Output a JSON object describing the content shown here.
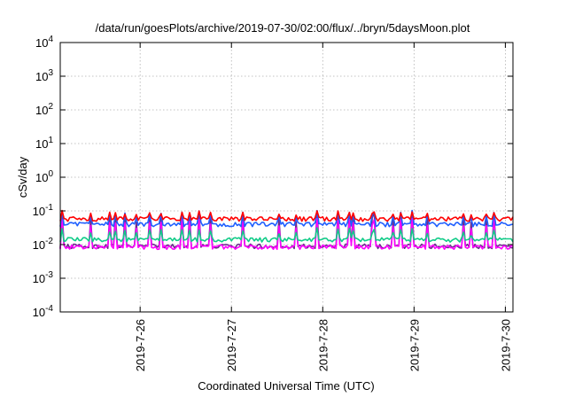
{
  "chart_data": {
    "type": "line",
    "title": "/data/run/goesPlots/archive/2019-07-30/02:00/flux/../bryn/5daysMoon.plot",
    "xlabel": "Coordinated Universal Time (UTC)",
    "ylabel": "cSv/day",
    "yscale": "log",
    "ylim": [
      0.0001,
      10000
    ],
    "yticks": [
      {
        "base": "10",
        "exp": "-4"
      },
      {
        "base": "10",
        "exp": "-3"
      },
      {
        "base": "10",
        "exp": "-2"
      },
      {
        "base": "10",
        "exp": "-1"
      },
      {
        "base": "10",
        "exp": "0"
      },
      {
        "base": "10",
        "exp": "1"
      },
      {
        "base": "10",
        "exp": "2"
      },
      {
        "base": "10",
        "exp": "3"
      },
      {
        "base": "10",
        "exp": "4"
      }
    ],
    "xlim": [
      "2019-07-25 03:00",
      "2019-07-30 02:00"
    ],
    "xticks": [
      "2019-7-26",
      "2019-7-27",
      "2019-7-28",
      "2019-7-29",
      "2019-7-30"
    ],
    "grid": true,
    "colors": {
      "red": "#ff0000",
      "blue": "#1f5fff",
      "green": "#11cc88",
      "magenta": "#ff00ff",
      "purple": "#6a2c8a"
    },
    "series": [
      {
        "color": "red",
        "level": 0.058,
        "peak": 0.1,
        "start": "2019-07-25 03:00",
        "interval_hours": 0.5
      },
      {
        "color": "blue",
        "level": 0.04,
        "peak": 0.1,
        "start": "2019-07-25 03:00",
        "interval_hours": 0.5
      },
      {
        "color": "green",
        "level": 0.014,
        "peak": 0.03,
        "start": "2019-07-25 03:00",
        "interval_hours": 0.5
      },
      {
        "color": "purple",
        "level": 0.009,
        "peak": 0.1,
        "start": "2019-07-25 03:00",
        "interval_hours": 0.5
      },
      {
        "color": "magenta",
        "level": 0.0085,
        "peak": 0.06,
        "start": "2019-07-25 03:00",
        "interval_hours": 0.5
      }
    ]
  }
}
